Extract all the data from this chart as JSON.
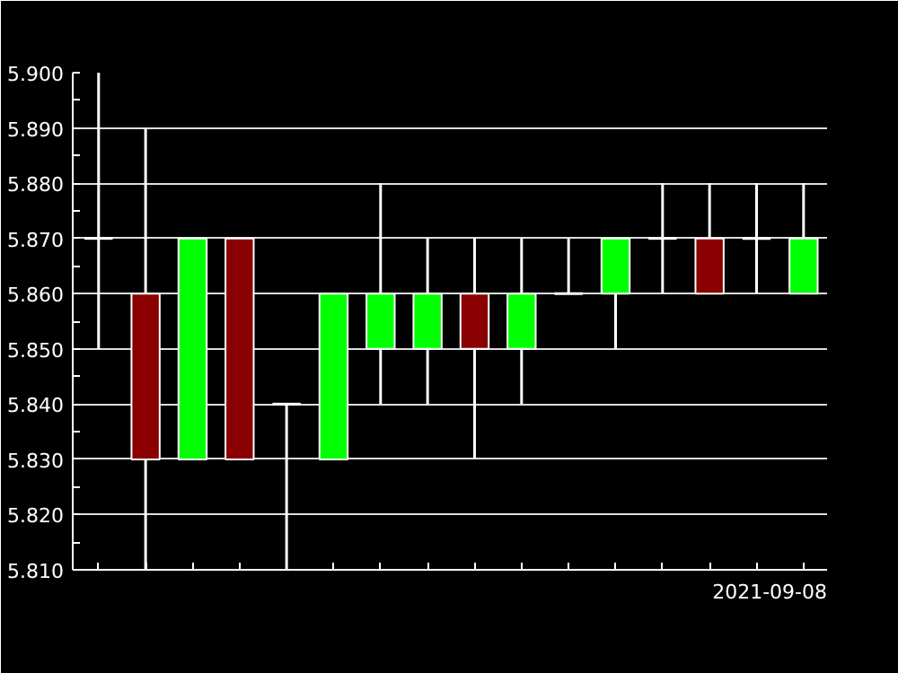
{
  "chart_data": {
    "type": "candlestick",
    "categories": [
      null,
      null,
      null,
      null,
      null,
      null,
      null,
      null,
      null,
      null,
      null,
      null,
      null,
      null,
      null,
      null
    ],
    "ohlc": [
      [
        5.87,
        5.9,
        5.85,
        5.87
      ],
      [
        5.86,
        5.89,
        5.81,
        5.83
      ],
      [
        5.83,
        5.87,
        5.83,
        5.87
      ],
      [
        5.87,
        5.87,
        5.83,
        5.83
      ],
      [
        5.84,
        5.84,
        5.81,
        5.84
      ],
      [
        5.83,
        5.86,
        5.83,
        5.86
      ],
      [
        5.85,
        5.88,
        5.84,
        5.86
      ],
      [
        5.85,
        5.87,
        5.84,
        5.86
      ],
      [
        5.86,
        5.87,
        5.83,
        5.85
      ],
      [
        5.85,
        5.87,
        5.84,
        5.86
      ],
      [
        5.86,
        5.87,
        5.86,
        5.86
      ],
      [
        5.86,
        5.87,
        5.85,
        5.87
      ],
      [
        5.87,
        5.88,
        5.86,
        5.87
      ],
      [
        5.87,
        5.88,
        5.86,
        5.86
      ],
      [
        5.87,
        5.88,
        5.86,
        5.87
      ],
      [
        5.86,
        5.88,
        5.86,
        5.87
      ]
    ],
    "colors": [
      "#ffffff",
      "#8b0000",
      "#00ff00",
      "#8b0000",
      "#ffffff",
      "#00ff00",
      "#00ff00",
      "#00ff00",
      "#8b0000",
      "#00ff00",
      "#ffffff",
      "#00ff00",
      "#ffffff",
      "#8b0000",
      "#ffffff",
      "#00ff00"
    ],
    "ylim": [
      5.81,
      5.9
    ],
    "yticks": [
      {
        "value": 5.81,
        "label": "5.810"
      },
      {
        "value": 5.815,
        "label": null
      },
      {
        "value": 5.82,
        "label": "5.820"
      },
      {
        "value": 5.825,
        "label": null
      },
      {
        "value": 5.83,
        "label": "5.830"
      },
      {
        "value": 5.835,
        "label": null
      },
      {
        "value": 5.84,
        "label": "5.840"
      },
      {
        "value": 5.845,
        "label": null
      },
      {
        "value": 5.85,
        "label": "5.850"
      },
      {
        "value": 5.855,
        "label": null
      },
      {
        "value": 5.86,
        "label": "5.860"
      },
      {
        "value": 5.865,
        "label": null
      },
      {
        "value": 5.87,
        "label": "5.870"
      },
      {
        "value": 5.875,
        "label": null
      },
      {
        "value": 5.88,
        "label": "5.880"
      },
      {
        "value": 5.885,
        "label": null
      },
      {
        "value": 5.89,
        "label": "5.890"
      },
      {
        "value": 5.895,
        "label": null
      },
      {
        "value": 5.9,
        "label": "5.900"
      }
    ],
    "grid": "y",
    "tick_labels": "y",
    "annotations": [
      "2021-09-08"
    ]
  }
}
